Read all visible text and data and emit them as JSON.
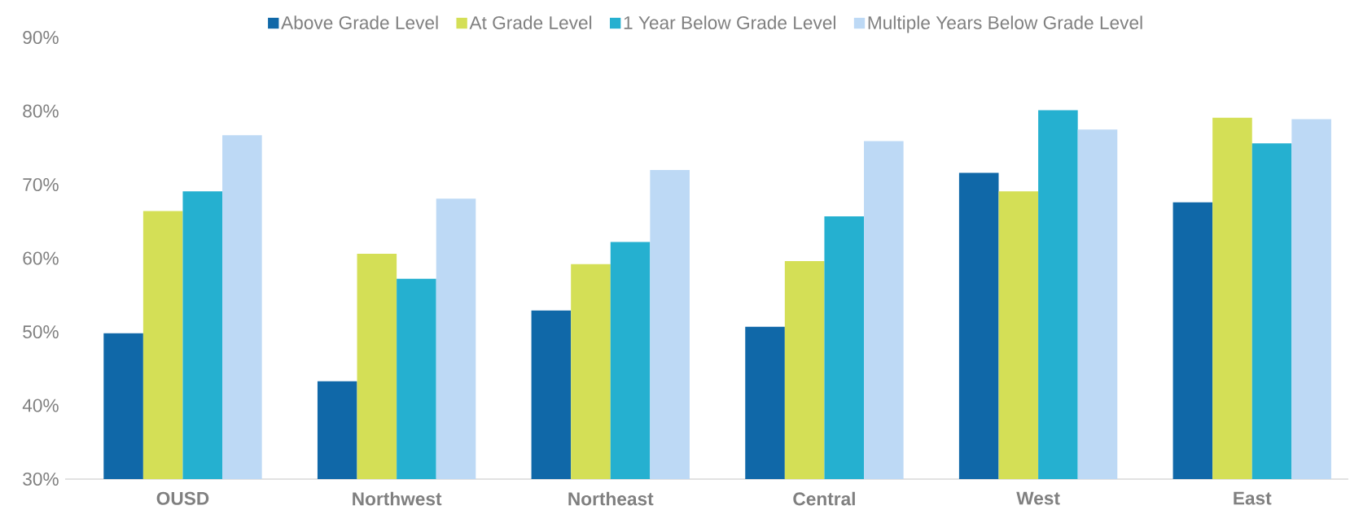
{
  "chart_data": {
    "type": "bar",
    "categories": [
      "OUSD",
      "Northwest",
      "Northeast",
      "Central",
      "West",
      "East"
    ],
    "series": [
      {
        "name": "Above Grade Level",
        "color": "#1068a8",
        "values": [
          49.8,
          43.3,
          52.9,
          50.7,
          71.6,
          67.6
        ]
      },
      {
        "name": "At Grade Level",
        "color": "#d4df56",
        "values": [
          66.4,
          60.6,
          59.2,
          59.6,
          69.1,
          79.1
        ]
      },
      {
        "name": "1 Year Below Grade Level",
        "color": "#25b0d0",
        "values": [
          69.1,
          57.2,
          62.2,
          65.7,
          80.1,
          75.6
        ]
      },
      {
        "name": "Multiple Years Below Grade Level",
        "color": "#bdd9f5",
        "values": [
          76.7,
          68.1,
          72.0,
          75.9,
          77.5,
          78.9
        ]
      }
    ],
    "ylim": [
      30,
      90
    ],
    "yticks": [
      {
        "value": 30,
        "label": "30%"
      },
      {
        "value": 40,
        "label": "40%"
      },
      {
        "value": 50,
        "label": "50%"
      },
      {
        "value": 60,
        "label": "60%"
      },
      {
        "value": 70,
        "label": "70%"
      },
      {
        "value": 80,
        "label": "80%"
      },
      {
        "value": 90,
        "label": "90%"
      }
    ],
    "grid": false,
    "legend": "top"
  }
}
